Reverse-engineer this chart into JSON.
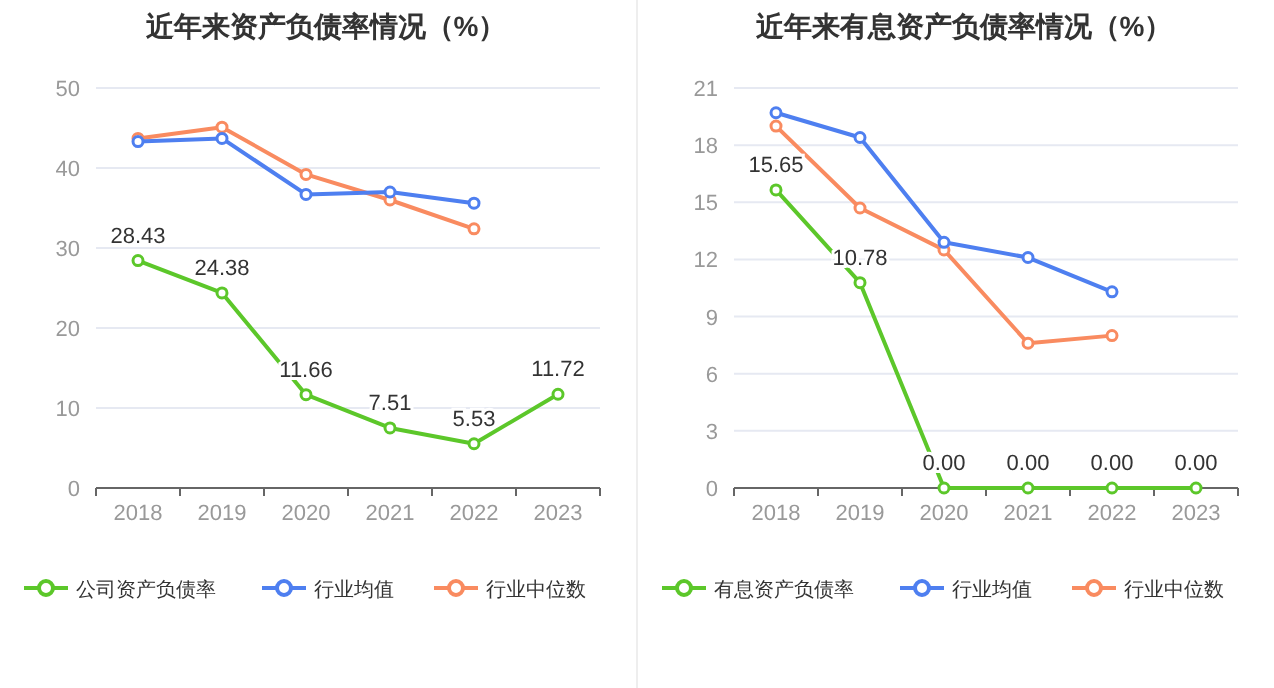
{
  "chart_data": [
    {
      "type": "line",
      "title": "近年来资产负债率情况（%）",
      "categories": [
        "2018",
        "2019",
        "2020",
        "2021",
        "2022",
        "2023"
      ],
      "ylim": [
        0,
        50
      ],
      "yticks": [
        0,
        10,
        20,
        30,
        40,
        50
      ],
      "grid": "y",
      "legend": "bottom",
      "marker": "circle",
      "series": [
        {
          "name": "公司资产负债率",
          "color": "#5cc72a",
          "values": [
            28.43,
            24.38,
            11.66,
            7.51,
            5.53,
            11.72
          ],
          "value_labels": [
            "28.43",
            "24.38",
            "11.66",
            "7.51",
            "5.53",
            "11.72"
          ]
        },
        {
          "name": "行业均值",
          "color": "#4e7ff0",
          "values": [
            43.3,
            43.7,
            36.7,
            37.0,
            35.6,
            null
          ]
        },
        {
          "name": "行业中位数",
          "color": "#f98b60",
          "values": [
            43.7,
            45.1,
            39.2,
            36.0,
            32.4,
            null
          ]
        }
      ]
    },
    {
      "type": "line",
      "title": "近年来有息资产负债率情况（%）",
      "categories": [
        "2018",
        "2019",
        "2020",
        "2021",
        "2022",
        "2023"
      ],
      "ylim": [
        0,
        21
      ],
      "yticks": [
        0,
        3,
        6,
        9,
        12,
        15,
        18,
        21
      ],
      "grid": "y",
      "legend": "bottom",
      "marker": "circle",
      "series": [
        {
          "name": "有息资产负债率",
          "color": "#5cc72a",
          "values": [
            15.65,
            10.78,
            0.0,
            0.0,
            0.0,
            0.0
          ],
          "value_labels": [
            "15.65",
            "10.78",
            "0.00",
            "0.00",
            "0.00",
            "0.00"
          ]
        },
        {
          "name": "行业均值",
          "color": "#4e7ff0",
          "values": [
            19.7,
            18.4,
            12.9,
            12.1,
            10.3,
            null
          ]
        },
        {
          "name": "行业中位数",
          "color": "#f98b60",
          "values": [
            19.0,
            14.7,
            12.5,
            7.6,
            8.0,
            null
          ]
        }
      ]
    }
  ]
}
